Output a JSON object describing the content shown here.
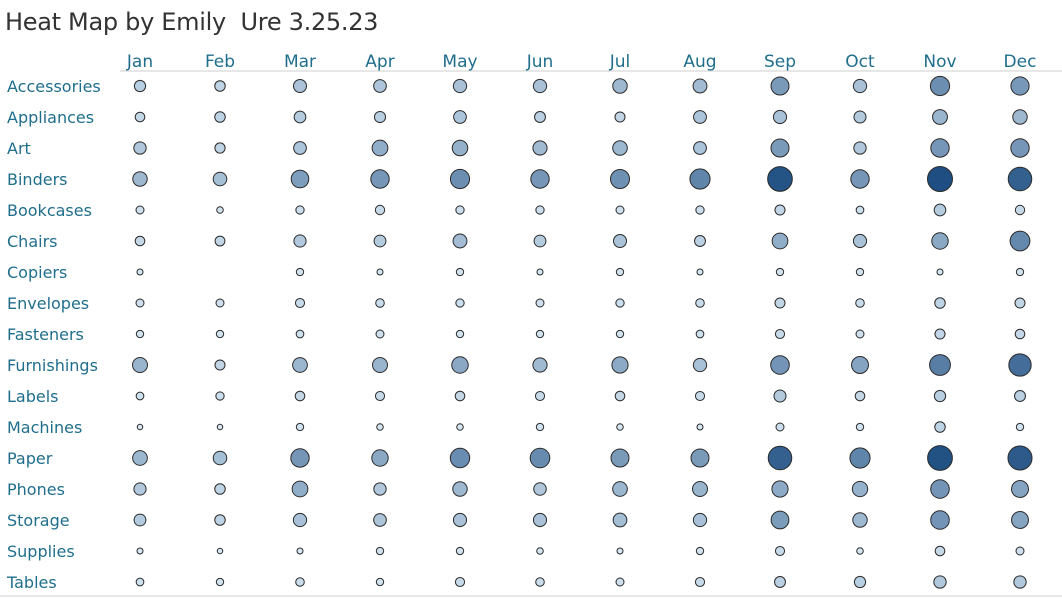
{
  "title": "Heat Map by Emily  Ure 3.25.23",
  "chart_data": {
    "type": "heatmap",
    "mark": "circle",
    "encoding": "size and color = value (darker/larger = higher)",
    "columns": [
      "Jan",
      "Feb",
      "Mar",
      "Apr",
      "May",
      "Jun",
      "Jul",
      "Aug",
      "Sep",
      "Oct",
      "Nov",
      "Dec"
    ],
    "rows": [
      "Accessories",
      "Appliances",
      "Art",
      "Binders",
      "Bookcases",
      "Chairs",
      "Copiers",
      "Envelopes",
      "Fasteners",
      "Furnishings",
      "Labels",
      "Machines",
      "Paper",
      "Phones",
      "Storage",
      "Supplies",
      "Tables"
    ],
    "values": [
      [
        22,
        18,
        32,
        30,
        34,
        34,
        42,
        38,
        72,
        34,
        84,
        74
      ],
      [
        14,
        18,
        24,
        21,
        30,
        20,
        16,
        31,
        33,
        26,
        45,
        42
      ],
      [
        28,
        17,
        30,
        52,
        50,
        40,
        43,
        31,
        72,
        28,
        76,
        76
      ],
      [
        42,
        36,
        68,
        76,
        84,
        76,
        82,
        94,
        150,
        76,
        155,
        135
      ],
      [
        8,
        4,
        9,
        13,
        9,
        9,
        8,
        9,
        16,
        7,
        24,
        13
      ],
      [
        14,
        15,
        27,
        25,
        38,
        25,
        32,
        20,
        52,
        33,
        58,
        90
      ],
      [
        3,
        0,
        6,
        3,
        6,
        3,
        6,
        3,
        6,
        6,
        3,
        6
      ],
      [
        8,
        8,
        12,
        10,
        9,
        8,
        9,
        10,
        16,
        10,
        18,
        16
      ],
      [
        6,
        6,
        7,
        8,
        6,
        6,
        6,
        7,
        12,
        8,
        16,
        14
      ],
      [
        46,
        16,
        44,
        46,
        58,
        40,
        56,
        34,
        78,
        62,
        102,
        120
      ],
      [
        7,
        9,
        14,
        12,
        14,
        12,
        14,
        12,
        26,
        14,
        22,
        20
      ],
      [
        2,
        2,
        6,
        4,
        4,
        6,
        4,
        3,
        8,
        6,
        18,
        6
      ],
      [
        44,
        36,
        76,
        58,
        86,
        88,
        72,
        72,
        135,
        94,
        152,
        142
      ],
      [
        27,
        18,
        52,
        28,
        42,
        29,
        44,
        46,
        56,
        49,
        78,
        62
      ],
      [
        25,
        18,
        34,
        30,
        33,
        33,
        37,
        34,
        70,
        42,
        78,
        62
      ],
      [
        3,
        2,
        3,
        6,
        6,
        4,
        3,
        6,
        12,
        4,
        14,
        8
      ],
      [
        7,
        6,
        10,
        6,
        12,
        10,
        8,
        12,
        20,
        22,
        28,
        28
      ]
    ]
  },
  "colors": {
    "low": "#dcecf7",
    "high": "#1f4f82",
    "label": "#1f6e8c",
    "title": "#333333",
    "rule": "#cfcfcf"
  }
}
